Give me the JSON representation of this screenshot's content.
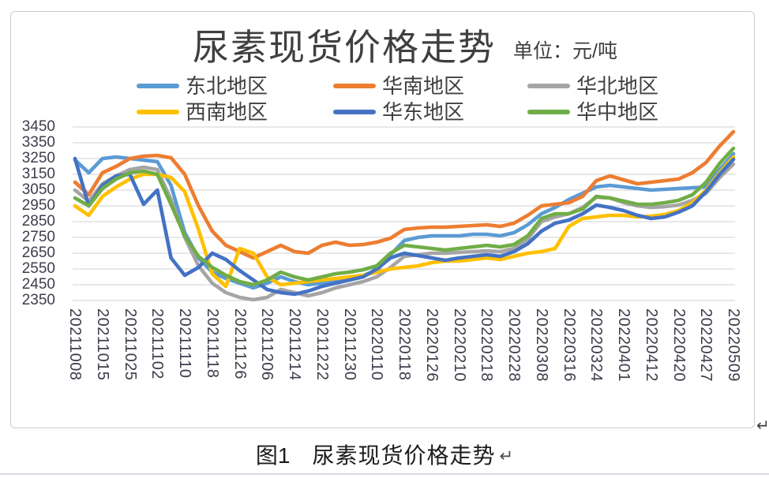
{
  "chart": {
    "frame_border_color": "#c7ccd8",
    "background": "#ffffff"
  },
  "caption": {
    "figure_label": "图1",
    "text": "尿素现货价格走势"
  },
  "marks": {
    "return_mark": "↵"
  },
  "chart_data": {
    "type": "line",
    "title": "尿素现货价格走势",
    "unit_label": "单位：元/吨",
    "unit": "元/吨",
    "grid": "horizontal",
    "legend_position": "top-two-rows",
    "ylim": [
      2350,
      3450
    ],
    "y_ticks": [
      3450,
      3350,
      3250,
      3150,
      3050,
      2950,
      2850,
      2750,
      2650,
      2550,
      2450,
      2350
    ],
    "x_tick_labels": [
      "20211008",
      "20211015",
      "20211025",
      "20211102",
      "20211110",
      "20211118",
      "20211126",
      "20211206",
      "20211214",
      "20211222",
      "20211230",
      "20220110",
      "20220118",
      "20220126",
      "20220210",
      "20220218",
      "20220228",
      "20220308",
      "20220316",
      "20220324",
      "20220401",
      "20220412",
      "20220420",
      "20220427",
      "20220509"
    ],
    "points_per_label_interval": 2,
    "series": [
      {
        "id": "northeast",
        "name": "东北地区",
        "color": "#5B9BD5",
        "values": [
          3240,
          3160,
          3250,
          3260,
          3250,
          3240,
          3230,
          3080,
          2780,
          2620,
          2530,
          2490,
          2460,
          2430,
          2460,
          2500,
          2470,
          2450,
          2460,
          2470,
          2490,
          2510,
          2540,
          2640,
          2730,
          2750,
          2760,
          2760,
          2760,
          2770,
          2770,
          2760,
          2780,
          2830,
          2900,
          2940,
          2990,
          3030,
          3070,
          3080,
          3070,
          3060,
          3050,
          3055,
          3060,
          3065,
          3070,
          3180,
          3280
        ]
      },
      {
        "id": "south-china",
        "name": "华南地区",
        "color": "#ED7D31",
        "values": [
          3100,
          3020,
          3160,
          3200,
          3250,
          3265,
          3270,
          3255,
          3150,
          2950,
          2790,
          2700,
          2660,
          2620,
          2660,
          2700,
          2660,
          2650,
          2700,
          2720,
          2700,
          2705,
          2720,
          2745,
          2800,
          2810,
          2815,
          2815,
          2820,
          2825,
          2830,
          2820,
          2840,
          2890,
          2950,
          2960,
          2970,
          3010,
          3110,
          3140,
          3115,
          3090,
          3100,
          3110,
          3120,
          3160,
          3225,
          3330,
          3420
        ]
      },
      {
        "id": "north-china",
        "name": "华北地区",
        "color": "#A5A5A5",
        "values": [
          3050,
          2980,
          3090,
          3140,
          3180,
          3195,
          3180,
          2990,
          2750,
          2570,
          2460,
          2400,
          2370,
          2355,
          2370,
          2420,
          2400,
          2380,
          2400,
          2430,
          2450,
          2470,
          2500,
          2560,
          2630,
          2640,
          2650,
          2650,
          2655,
          2660,
          2665,
          2660,
          2680,
          2740,
          2850,
          2880,
          2900,
          2940,
          3005,
          3000,
          2970,
          2950,
          2940,
          2945,
          2955,
          2985,
          3030,
          3130,
          3215
        ]
      },
      {
        "id": "southwest",
        "name": "西南地区",
        "color": "#FFC000",
        "values": [
          2950,
          2890,
          3010,
          3070,
          3120,
          3150,
          3150,
          3130,
          3040,
          2800,
          2520,
          2440,
          2680,
          2650,
          2500,
          2450,
          2460,
          2470,
          2480,
          2490,
          2500,
          2510,
          2530,
          2550,
          2560,
          2570,
          2590,
          2600,
          2600,
          2610,
          2620,
          2610,
          2630,
          2650,
          2660,
          2680,
          2820,
          2870,
          2880,
          2890,
          2890,
          2880,
          2885,
          2895,
          2920,
          2970,
          3050,
          3160,
          3260
        ]
      },
      {
        "id": "east-china",
        "name": "华东地区",
        "color": "#4472C4",
        "values": [
          3250,
          2950,
          3080,
          3140,
          3150,
          2960,
          3050,
          2620,
          2510,
          2560,
          2650,
          2610,
          2540,
          2480,
          2420,
          2400,
          2390,
          2410,
          2440,
          2460,
          2480,
          2500,
          2550,
          2620,
          2650,
          2635,
          2620,
          2605,
          2620,
          2630,
          2640,
          2630,
          2660,
          2710,
          2790,
          2840,
          2860,
          2900,
          2955,
          2940,
          2920,
          2890,
          2870,
          2880,
          2910,
          2950,
          3040,
          3150,
          3245
        ]
      },
      {
        "id": "central-china",
        "name": "华中地区",
        "color": "#70AD47",
        "values": [
          3000,
          2950,
          3060,
          3120,
          3160,
          3170,
          3150,
          2960,
          2760,
          2630,
          2560,
          2510,
          2470,
          2450,
          2480,
          2530,
          2500,
          2480,
          2500,
          2520,
          2530,
          2545,
          2570,
          2650,
          2700,
          2690,
          2680,
          2670,
          2680,
          2690,
          2700,
          2690,
          2705,
          2760,
          2870,
          2900,
          2900,
          2930,
          3010,
          3000,
          2980,
          2960,
          2960,
          2970,
          2985,
          3020,
          3100,
          3220,
          3315
        ]
      }
    ]
  }
}
